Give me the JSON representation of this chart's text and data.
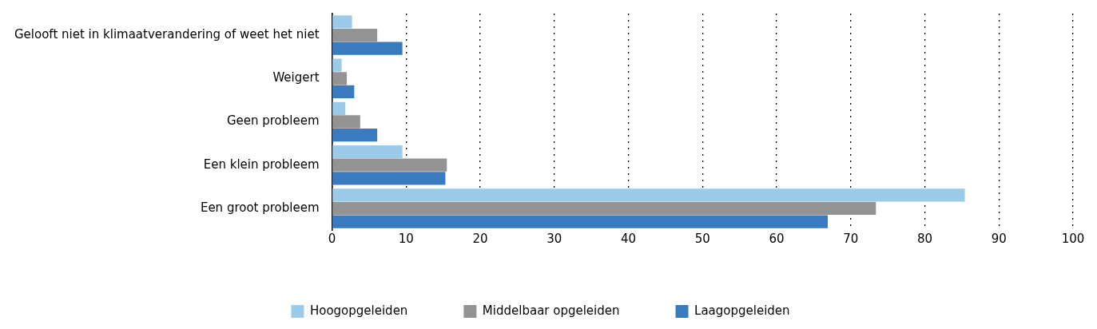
{
  "chart_data": {
    "type": "bar",
    "orientation": "horizontal",
    "categories": [
      "Gelooft niet in klimaatverandering of weet het niet",
      "Weigert",
      "Geen probleem",
      "Een klein probleem",
      "Een groot probleem"
    ],
    "series": [
      {
        "name": "Hoogopgeleiden",
        "color": "#9ccbea",
        "values": [
          2.7,
          1.3,
          1.8,
          9.5,
          85.4
        ]
      },
      {
        "name": "Middelbaar opgeleiden",
        "color": "#939393",
        "values": [
          6.1,
          2.0,
          3.8,
          15.5,
          73.4
        ]
      },
      {
        "name": "Laagopgeleiden",
        "color": "#3a7bbf",
        "values": [
          9.5,
          3.0,
          6.1,
          15.3,
          66.9
        ]
      }
    ],
    "xlim": [
      0,
      100
    ],
    "xticks": [
      0,
      10,
      20,
      30,
      40,
      50,
      60,
      70,
      80,
      90,
      100
    ],
    "grid": "x",
    "legend": "bottom"
  }
}
